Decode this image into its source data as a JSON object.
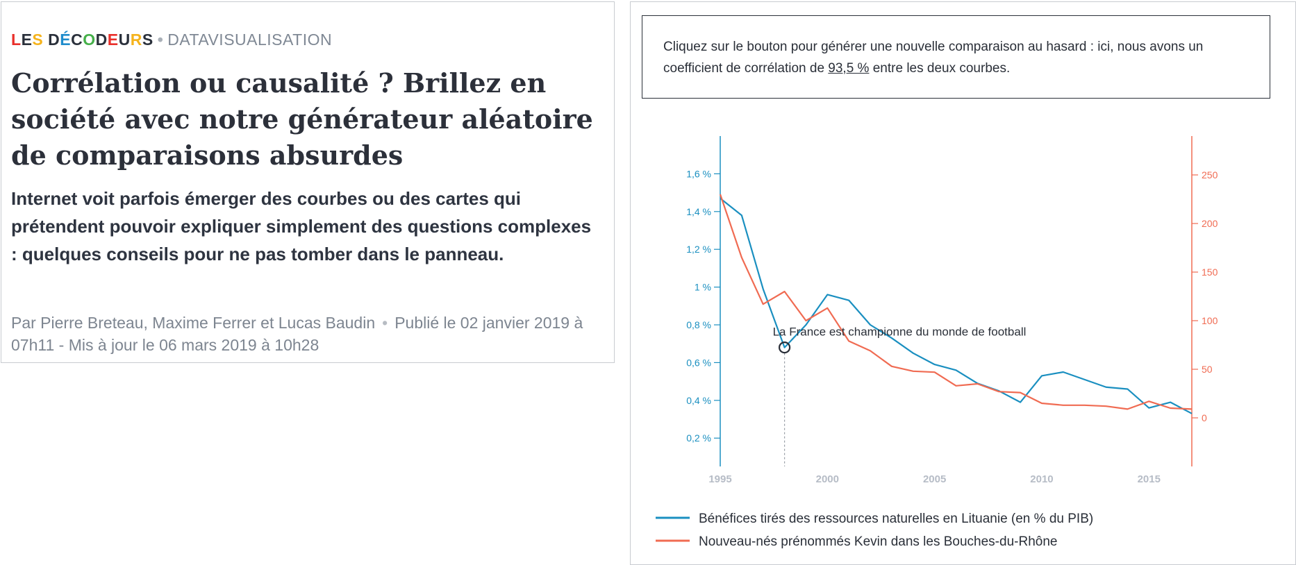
{
  "article": {
    "brand": "LES DÉCODEURS",
    "brand_letter_colors": [
      "#e9302b",
      "#2a303b",
      "#f5b31c",
      "#2a303b",
      "#1f8ccc",
      "#2a303b",
      "#46b04a",
      "#2a303b",
      "#e9302b",
      "#2a303b",
      "#f5b31c",
      "#2a303b",
      "#1f8ccc"
    ],
    "section": "DATAVISUALISATION",
    "title": "Corrélation ou causalité ? Brillez en société avec notre générateur aléatoire de comparaisons absurdes",
    "standfirst": "Internet voit parfois émerger des courbes ou des cartes qui prétendent pouvoir expliquer simplement des questions complexes : quelques conseils pour ne pas tomber dans le panneau.",
    "byline": "Par Pierre Breteau, Maxime Ferrer et Lucas Baudin",
    "dates": "Publié le 02 janvier 2019 à 07h11 - Mis à jour le 06 mars 2019 à 10h28"
  },
  "info": {
    "text_before": "Cliquez sur le bouton pour générer une nouvelle comparaison au hasard : ici, nous avons un coefficient de corrélation de ",
    "correlation": "93,5 %",
    "text_after": " entre les deux courbes."
  },
  "chart_data": {
    "type": "line",
    "x": [
      1995,
      1996,
      1997,
      1998,
      1999,
      2000,
      2001,
      2002,
      2003,
      2004,
      2005,
      2006,
      2007,
      2008,
      2009,
      2010,
      2011,
      2012,
      2013,
      2014,
      2015,
      2016,
      2017
    ],
    "xlim": [
      1995,
      2017
    ],
    "x_ticks": [
      1995,
      2000,
      2005,
      2010,
      2015
    ],
    "x_tick_labels": [
      "1995",
      "2000",
      "2005",
      "2010",
      "2015"
    ],
    "y_left": {
      "ticks": [
        0.2,
        0.4,
        0.6,
        0.8,
        1.0,
        1.2,
        1.4,
        1.6
      ],
      "tick_labels": [
        "0,2 %",
        "0,4 %",
        "0,6 %",
        "0,8 %",
        "1 %",
        "1,2 %",
        "1,4 %",
        "1,6 %"
      ],
      "ylim": [
        0.05,
        1.8
      ]
    },
    "y_right": {
      "ticks": [
        0,
        50,
        100,
        150,
        200,
        250
      ],
      "tick_labels": [
        "0",
        "50",
        "100",
        "150",
        "200",
        "250"
      ],
      "ylim": [
        -50,
        290
      ]
    },
    "series": [
      {
        "name": "Bénéfices tirés des ressources naturelles en Lituanie (en % du PIB)",
        "axis": "left",
        "color": "#1a8fc0",
        "values": [
          1.47,
          1.38,
          0.99,
          0.68,
          0.8,
          0.96,
          0.93,
          0.8,
          0.73,
          0.65,
          0.59,
          0.56,
          0.49,
          0.45,
          0.39,
          0.53,
          0.55,
          0.51,
          0.47,
          0.46,
          0.36,
          0.39,
          0.33
        ]
      },
      {
        "name": "Nouveau-nés prénommés Kevin dans les Bouches-du-Rhône",
        "axis": "right",
        "color": "#f06b52",
        "values": [
          230,
          165,
          117,
          130,
          100,
          113,
          79,
          69,
          53,
          48,
          47,
          33,
          35,
          27,
          26,
          15,
          13,
          13,
          12,
          9,
          17,
          10,
          9
        ]
      }
    ],
    "annotation": {
      "text": "La France est championne du monde de football",
      "x": 1998,
      "y": 0.68,
      "axis": "left"
    },
    "colors": {
      "left_axis": "#1a8fc0",
      "right_axis": "#f06b52",
      "x_axis_labels": "#b6bcc6"
    }
  }
}
